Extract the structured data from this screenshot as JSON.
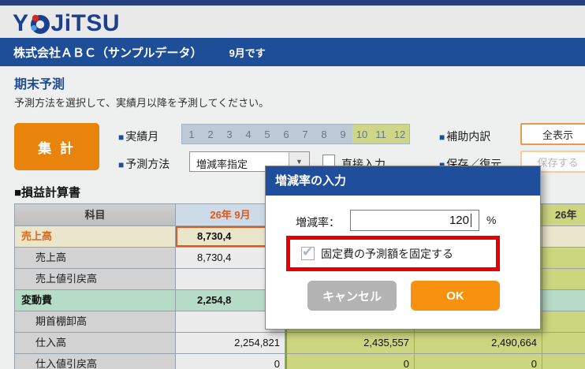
{
  "header": {
    "logo_y": "Y",
    "logo_rest": "JiTSU",
    "company": "株式会社ＡＢＣ（サンプルデータ）",
    "month_note": "9月です"
  },
  "page": {
    "title": "期末予測",
    "subtitle": "予測方法を選択して、実績月以降を予測してください。",
    "section_title": "■損益計算書"
  },
  "toolbar": {
    "bullet": "■",
    "aggregate_label": "集 計",
    "actual_month_label": "実績月",
    "months_actual": [
      "1",
      "2",
      "3",
      "4",
      "5",
      "6",
      "7",
      "8",
      "9"
    ],
    "months_forecast": [
      "10",
      "11",
      "12"
    ],
    "forecast_method_label": "予測方法",
    "forecast_method_value": "増減率指定",
    "dropdown_arrow": "▼",
    "direct_input_label": "直接入力",
    "aux_breakdown_label": "補助内訳",
    "show_all_label": "全表示",
    "save_restore_label": "保存／復元",
    "save_label": "保存する"
  },
  "table": {
    "headers": [
      "科目",
      "26年 9月",
      "",
      "",
      "26年"
    ],
    "rows": [
      {
        "label": "売上高",
        "type": "cat-sales",
        "selected": true,
        "col9_cut": true,
        "values": [
          "8,730,4",
          "",
          "",
          ""
        ]
      },
      {
        "label": "売上高",
        "type": "sub",
        "selected": false,
        "col9_cut": true,
        "values": [
          "8,730,4",
          "",
          "",
          ""
        ]
      },
      {
        "label": "売上値引戻高",
        "type": "sub",
        "selected": false,
        "col9_cut": false,
        "values": [
          "",
          "",
          "",
          ""
        ]
      },
      {
        "label": "変動費",
        "type": "cat-var",
        "selected": false,
        "col9_cut": true,
        "values": [
          "2,254,8",
          "",
          "",
          ""
        ]
      },
      {
        "label": "期首棚卸高",
        "type": "sub",
        "selected": false,
        "col9_cut": false,
        "values": [
          "",
          "",
          "",
          ""
        ]
      },
      {
        "label": "仕入高",
        "type": "sub",
        "selected": false,
        "col9_cut": false,
        "values": [
          "2,254,821",
          "2,435,557",
          "2,490,664",
          ""
        ]
      },
      {
        "label": "仕入値引戻高",
        "type": "sub",
        "selected": false,
        "col9_cut": false,
        "values": [
          "0",
          "0",
          "0",
          ""
        ]
      }
    ]
  },
  "modal": {
    "title": "増減率の入力",
    "rate_label": "増減率：",
    "rate_value": "120",
    "rate_unit": "%",
    "checkbox_label": "固定費の予測額を固定する",
    "checkbox_checked": "✔",
    "cancel_label": "キャンセル",
    "ok_label": "OK"
  },
  "colors": {
    "accent_orange": "#e8830b",
    "brand_blue": "#1f4e99",
    "highlight_red": "#e80000",
    "actual_month_blue": "#bccad7",
    "forecast_green": "#ccd67f",
    "selected_cell_orange": "#e2571b"
  }
}
